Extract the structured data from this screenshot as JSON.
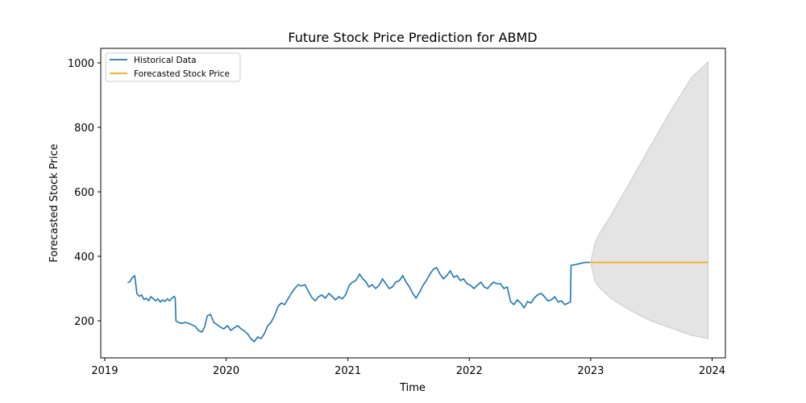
{
  "chart_data": {
    "type": "line",
    "title": "Future Stock Price Prediction for ABMD",
    "xlabel": "Time",
    "ylabel": "Forecasted Stock Price",
    "xlim": [
      "2018-12-20",
      "2024-02-10"
    ],
    "ylim": [
      85,
      1045
    ],
    "x_ticks": [
      "2019",
      "2020",
      "2021",
      "2022",
      "2023",
      "2024"
    ],
    "y_ticks": [
      200,
      400,
      600,
      800,
      1000
    ],
    "grid": false,
    "legend_position": "top-left",
    "series": [
      {
        "name": "Historical Data",
        "color": "#1f77b4",
        "points": [
          [
            "2019-03-11",
            318
          ],
          [
            "2019-03-18",
            322
          ],
          [
            "2019-03-25",
            334
          ],
          [
            "2019-04-01",
            340
          ],
          [
            "2019-04-08",
            283
          ],
          [
            "2019-04-15",
            276
          ],
          [
            "2019-04-22",
            280
          ],
          [
            "2019-04-29",
            266
          ],
          [
            "2019-05-06",
            270
          ],
          [
            "2019-05-13",
            262
          ],
          [
            "2019-05-20",
            275
          ],
          [
            "2019-05-27",
            268
          ],
          [
            "2019-06-03",
            262
          ],
          [
            "2019-06-10",
            268
          ],
          [
            "2019-06-17",
            258
          ],
          [
            "2019-06-24",
            265
          ],
          [
            "2019-07-01",
            260
          ],
          [
            "2019-07-08",
            268
          ],
          [
            "2019-07-15",
            262
          ],
          [
            "2019-07-22",
            270
          ],
          [
            "2019-07-29",
            276
          ],
          [
            "2019-08-01",
            270
          ],
          [
            "2019-08-03",
            200
          ],
          [
            "2019-08-10",
            195
          ],
          [
            "2019-08-20",
            192
          ],
          [
            "2019-09-01",
            195
          ],
          [
            "2019-09-15",
            190
          ],
          [
            "2019-10-01",
            182
          ],
          [
            "2019-10-10",
            170
          ],
          [
            "2019-10-20",
            165
          ],
          [
            "2019-10-28",
            180
          ],
          [
            "2019-11-05",
            215
          ],
          [
            "2019-11-15",
            220
          ],
          [
            "2019-11-25",
            195
          ],
          [
            "2019-12-05",
            188
          ],
          [
            "2019-12-15",
            180
          ],
          [
            "2019-12-25",
            175
          ],
          [
            "2020-01-05",
            185
          ],
          [
            "2020-01-15",
            170
          ],
          [
            "2020-01-25",
            178
          ],
          [
            "2020-02-05",
            185
          ],
          [
            "2020-02-15",
            175
          ],
          [
            "2020-02-25",
            168
          ],
          [
            "2020-03-05",
            160
          ],
          [
            "2020-03-15",
            145
          ],
          [
            "2020-03-25",
            135
          ],
          [
            "2020-04-05",
            150
          ],
          [
            "2020-04-15",
            145
          ],
          [
            "2020-04-25",
            160
          ],
          [
            "2020-05-05",
            185
          ],
          [
            "2020-05-15",
            195
          ],
          [
            "2020-05-25",
            215
          ],
          [
            "2020-06-05",
            245
          ],
          [
            "2020-06-15",
            255
          ],
          [
            "2020-06-25",
            250
          ],
          [
            "2020-07-05",
            268
          ],
          [
            "2020-07-15",
            285
          ],
          [
            "2020-07-25",
            300
          ],
          [
            "2020-08-05",
            312
          ],
          [
            "2020-08-15",
            308
          ],
          [
            "2020-08-25",
            312
          ],
          [
            "2020-09-05",
            290
          ],
          [
            "2020-09-15",
            272
          ],
          [
            "2020-09-25",
            262
          ],
          [
            "2020-10-05",
            275
          ],
          [
            "2020-10-15",
            280
          ],
          [
            "2020-10-25",
            270
          ],
          [
            "2020-11-05",
            285
          ],
          [
            "2020-11-15",
            275
          ],
          [
            "2020-11-25",
            265
          ],
          [
            "2020-12-05",
            275
          ],
          [
            "2020-12-15",
            268
          ],
          [
            "2020-12-25",
            280
          ],
          [
            "2021-01-05",
            310
          ],
          [
            "2021-01-15",
            320
          ],
          [
            "2021-01-25",
            325
          ],
          [
            "2021-02-05",
            345
          ],
          [
            "2021-02-15",
            330
          ],
          [
            "2021-02-25",
            320
          ],
          [
            "2021-03-05",
            305
          ],
          [
            "2021-03-15",
            312
          ],
          [
            "2021-03-25",
            300
          ],
          [
            "2021-04-05",
            310
          ],
          [
            "2021-04-15",
            330
          ],
          [
            "2021-04-25",
            315
          ],
          [
            "2021-05-05",
            300
          ],
          [
            "2021-05-15",
            305
          ],
          [
            "2021-05-25",
            320
          ],
          [
            "2021-06-05",
            325
          ],
          [
            "2021-06-15",
            340
          ],
          [
            "2021-06-25",
            320
          ],
          [
            "2021-07-05",
            305
          ],
          [
            "2021-07-15",
            285
          ],
          [
            "2021-07-25",
            270
          ],
          [
            "2021-08-05",
            290
          ],
          [
            "2021-08-15",
            310
          ],
          [
            "2021-08-25",
            325
          ],
          [
            "2021-09-05",
            345
          ],
          [
            "2021-09-15",
            360
          ],
          [
            "2021-09-25",
            365
          ],
          [
            "2021-10-05",
            345
          ],
          [
            "2021-10-15",
            330
          ],
          [
            "2021-10-25",
            340
          ],
          [
            "2021-11-05",
            355
          ],
          [
            "2021-11-15",
            335
          ],
          [
            "2021-11-25",
            340
          ],
          [
            "2021-12-05",
            325
          ],
          [
            "2021-12-15",
            330
          ],
          [
            "2021-12-25",
            315
          ],
          [
            "2022-01-05",
            310
          ],
          [
            "2022-01-15",
            300
          ],
          [
            "2022-01-25",
            310
          ],
          [
            "2022-02-05",
            320
          ],
          [
            "2022-02-15",
            305
          ],
          [
            "2022-02-25",
            300
          ],
          [
            "2022-03-05",
            310
          ],
          [
            "2022-03-15",
            320
          ],
          [
            "2022-03-25",
            315
          ],
          [
            "2022-04-05",
            315
          ],
          [
            "2022-04-15",
            300
          ],
          [
            "2022-04-25",
            305
          ],
          [
            "2022-05-05",
            260
          ],
          [
            "2022-05-15",
            250
          ],
          [
            "2022-05-25",
            265
          ],
          [
            "2022-06-05",
            255
          ],
          [
            "2022-06-15",
            240
          ],
          [
            "2022-06-25",
            260
          ],
          [
            "2022-07-05",
            255
          ],
          [
            "2022-07-15",
            270
          ],
          [
            "2022-07-25",
            280
          ],
          [
            "2022-08-05",
            285
          ],
          [
            "2022-08-15",
            275
          ],
          [
            "2022-08-25",
            262
          ],
          [
            "2022-09-05",
            265
          ],
          [
            "2022-09-15",
            275
          ],
          [
            "2022-09-25",
            258
          ],
          [
            "2022-10-05",
            262
          ],
          [
            "2022-10-15",
            250
          ],
          [
            "2022-10-25",
            255
          ],
          [
            "2022-11-01",
            258
          ],
          [
            "2022-11-03",
            372
          ],
          [
            "2022-11-15",
            374
          ],
          [
            "2022-12-01",
            378
          ],
          [
            "2022-12-15",
            381
          ],
          [
            "2022-12-30",
            381
          ]
        ]
      },
      {
        "name": "Forecasted Stock Price",
        "color": "#ffa500",
        "points": [
          [
            "2023-01-01",
            381
          ],
          [
            "2023-12-20",
            381
          ]
        ]
      }
    ],
    "confidence_band": {
      "color": "#d9d9d9",
      "points": [
        [
          "2023-01-01",
          381,
          381
        ],
        [
          "2023-01-15",
          320,
          445
        ],
        [
          "2023-02-01",
          298,
          478
        ],
        [
          "2023-03-01",
          272,
          523
        ],
        [
          "2023-04-01",
          250,
          580
        ],
        [
          "2023-05-01",
          232,
          633
        ],
        [
          "2023-06-01",
          215,
          690
        ],
        [
          "2023-07-01",
          200,
          745
        ],
        [
          "2023-08-01",
          188,
          800
        ],
        [
          "2023-09-01",
          177,
          855
        ],
        [
          "2023-10-01",
          166,
          905
        ],
        [
          "2023-11-01",
          155,
          955
        ],
        [
          "2023-12-20",
          145,
          1003
        ]
      ]
    }
  }
}
